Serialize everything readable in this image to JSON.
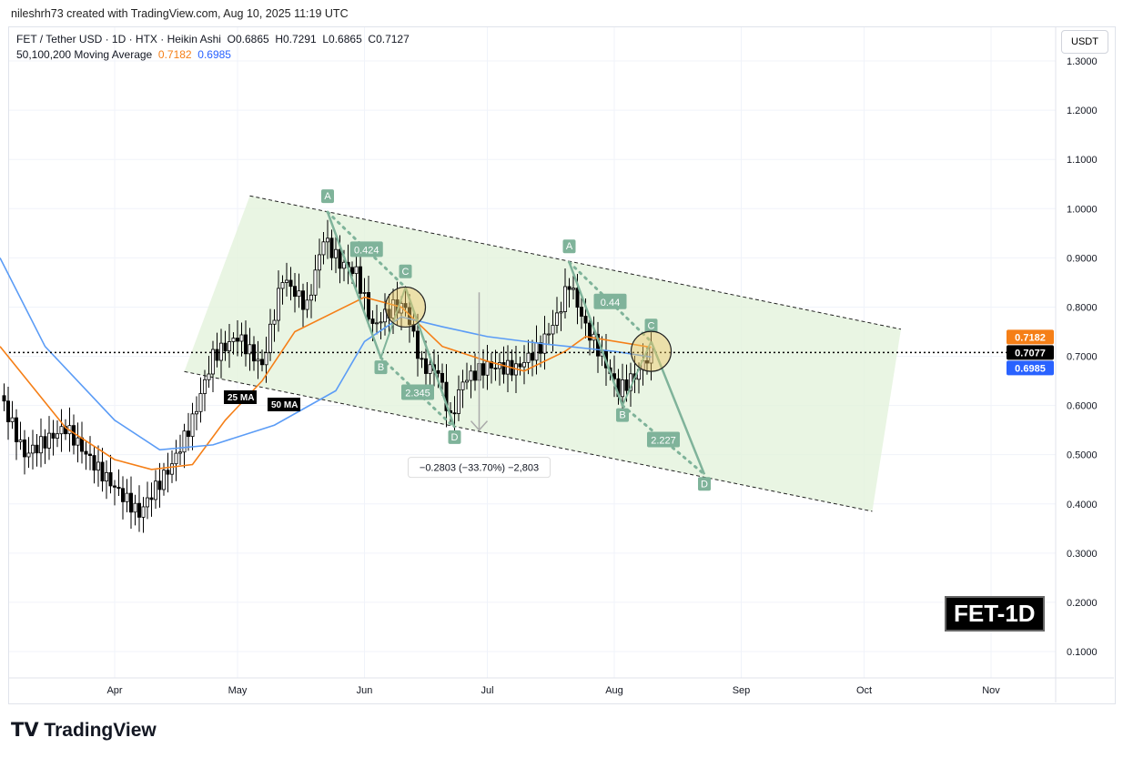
{
  "credit": "nileshrh73 created with TradingView.com, Aug 10, 2025 11:19 UTC",
  "legend": {
    "symbol": "FET / Tether USD · 1D · HTX · Heikin Ashi",
    "ohlc": "O0.6865  H0.7291  L0.6865  C0.7127",
    "ma_title": "50,100,200 Moving Average",
    "ma1": "0.7182",
    "ma2": "0.6985"
  },
  "currency_button": "USDT",
  "symbol_tag": "FET-1D",
  "logo": "TradingView",
  "colors": {
    "up": "#000000",
    "down": "#000000",
    "ma_orange": "#f57f17",
    "ma_blue": "#5b9cf6",
    "pattern": "#7fb39a",
    "channel_fill": "#e3f2dc"
  },
  "chart_data": {
    "type": "candlestick",
    "yaxis": {
      "ticks": [
        "1.3000",
        "1.2000",
        "1.1000",
        "1.0000",
        "0.9000",
        "0.8000",
        "0.7000",
        "0.6000",
        "0.5000",
        "0.4000",
        "0.3000",
        "0.2000",
        "0.1000"
      ],
      "range": [
        0.05,
        1.35
      ]
    },
    "xaxis": {
      "ticks": [
        {
          "label": "Apr",
          "date": "2025-04-01"
        },
        {
          "label": "May",
          "date": "2025-05-01"
        },
        {
          "label": "Jun",
          "date": "2025-06-01"
        },
        {
          "label": "Jul",
          "date": "2025-07-01"
        },
        {
          "label": "Aug",
          "date": "2025-08-01"
        },
        {
          "label": "Sep",
          "date": "2025-09-01"
        },
        {
          "label": "Oct",
          "date": "2025-10-01"
        },
        {
          "label": "Nov",
          "date": "2025-11-01"
        }
      ]
    },
    "price_path": [
      [
        "2025-03-04",
        0.62
      ],
      [
        "2025-03-10",
        0.5
      ],
      [
        "2025-03-20",
        0.555
      ],
      [
        "2025-03-28",
        0.47
      ],
      [
        "2025-04-07",
        0.38
      ],
      [
        "2025-04-10",
        0.42
      ],
      [
        "2025-04-15",
        0.48
      ],
      [
        "2025-04-20",
        0.57
      ],
      [
        "2025-04-25",
        0.7
      ],
      [
        "2025-05-01",
        0.74
      ],
      [
        "2025-05-07",
        0.68
      ],
      [
        "2025-05-12",
        0.86
      ],
      [
        "2025-05-18",
        0.8
      ],
      [
        "2025-05-22",
        0.94
      ],
      [
        "2025-05-26",
        0.89
      ],
      [
        "2025-05-30",
        0.87
      ],
      [
        "2025-06-03",
        0.76
      ],
      [
        "2025-06-08",
        0.8
      ],
      [
        "2025-06-11",
        0.8
      ],
      [
        "2025-06-15",
        0.68
      ],
      [
        "2025-06-19",
        0.67
      ],
      [
        "2025-06-22",
        0.57
      ],
      [
        "2025-06-25",
        0.65
      ],
      [
        "2025-07-01",
        0.68
      ],
      [
        "2025-07-08",
        0.675
      ],
      [
        "2025-07-14",
        0.72
      ],
      [
        "2025-07-18",
        0.78
      ],
      [
        "2025-07-21",
        0.85
      ],
      [
        "2025-07-25",
        0.76
      ],
      [
        "2025-07-29",
        0.7
      ],
      [
        "2025-08-02",
        0.63
      ],
      [
        "2025-08-06",
        0.66
      ],
      [
        "2025-08-10",
        0.71
      ]
    ],
    "ma_series": [
      {
        "name": "25 MA",
        "color": "#f57f17",
        "points": [
          [
            "2025-03-04",
            0.72
          ],
          [
            "2025-03-20",
            0.555
          ],
          [
            "2025-04-01",
            0.49
          ],
          [
            "2025-04-10",
            0.47
          ],
          [
            "2025-04-20",
            0.48
          ],
          [
            "2025-04-28",
            0.57
          ],
          [
            "2025-05-07",
            0.65
          ],
          [
            "2025-05-15",
            0.75
          ],
          [
            "2025-06-01",
            0.82
          ],
          [
            "2025-06-10",
            0.8
          ],
          [
            "2025-06-20",
            0.72
          ],
          [
            "2025-07-01",
            0.69
          ],
          [
            "2025-07-10",
            0.67
          ],
          [
            "2025-07-20",
            0.71
          ],
          [
            "2025-07-25",
            0.74
          ],
          [
            "2025-08-10",
            0.7182
          ]
        ]
      },
      {
        "name": "50 MA",
        "color": "#5b9cf6",
        "points": [
          [
            "2025-03-04",
            0.9
          ],
          [
            "2025-03-15",
            0.72
          ],
          [
            "2025-04-01",
            0.57
          ],
          [
            "2025-04-12",
            0.51
          ],
          [
            "2025-04-25",
            0.52
          ],
          [
            "2025-05-10",
            0.56
          ],
          [
            "2025-05-25",
            0.63
          ],
          [
            "2025-06-01",
            0.73
          ],
          [
            "2025-06-10",
            0.78
          ],
          [
            "2025-06-20",
            0.76
          ],
          [
            "2025-07-01",
            0.74
          ],
          [
            "2025-07-15",
            0.725
          ],
          [
            "2025-08-01",
            0.71
          ],
          [
            "2025-08-10",
            0.6985
          ]
        ]
      }
    ],
    "price_labels": [
      {
        "value": "0.7182",
        "color": "#f57f17"
      },
      {
        "value": "0.7077",
        "color": "#000000"
      },
      {
        "value": "0.6985",
        "color": "#2962ff"
      }
    ],
    "last_price": 0.7077,
    "channel": {
      "upper": [
        [
          "2025-05-04",
          1.026
        ],
        [
          "2025-10-10",
          0.755
        ]
      ],
      "lower": [
        [
          "2025-04-18",
          0.669
        ],
        [
          "2025-10-03",
          0.385
        ]
      ]
    },
    "patterns": [
      {
        "points": [
          [
            "A",
            "2025-05-23",
            0.993
          ],
          [
            "B",
            "2025-06-05",
            0.697
          ],
          [
            "C",
            "2025-06-11",
            0.84
          ],
          [
            "D",
            "2025-06-23",
            0.555
          ]
        ],
        "ratios": [
          "0.424",
          "2.345"
        ]
      },
      {
        "points": [
          [
            "A",
            "2025-07-21",
            0.891
          ],
          [
            "B",
            "2025-08-03",
            0.6
          ],
          [
            "C",
            "2025-08-10",
            0.73
          ],
          [
            "D",
            "2025-08-23",
            0.46
          ]
        ],
        "ratios": [
          "0.44",
          "2.227"
        ]
      }
    ],
    "highlights": [
      [
        "2025-06-11",
        0.8
      ],
      [
        "2025-08-10",
        0.71
      ]
    ],
    "ma_labels": [
      "25 MA",
      "50 MA"
    ],
    "measure": {
      "date": "2025-06-29",
      "from": 0.83,
      "to": 0.55,
      "label": "−0.2803 (−33.70%) −2,803"
    }
  }
}
